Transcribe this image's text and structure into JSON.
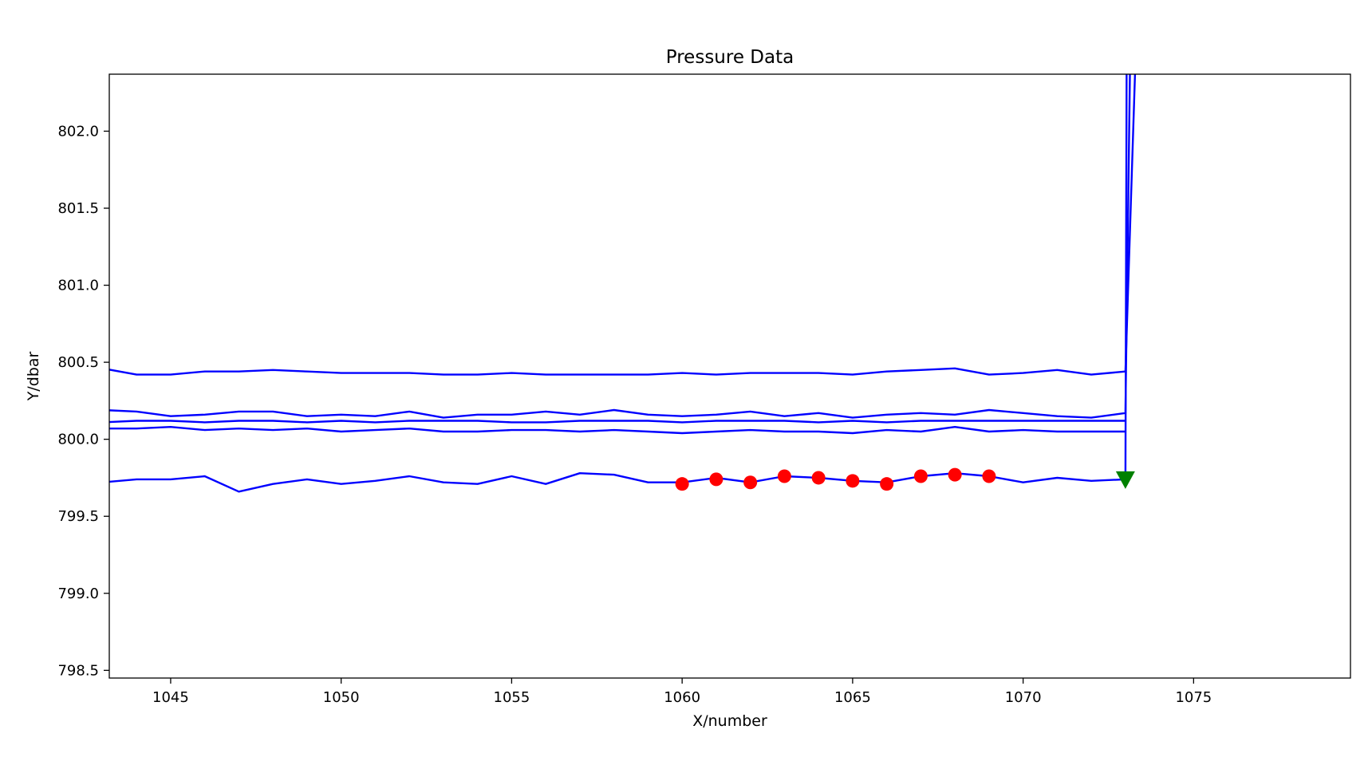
{
  "chart_data": {
    "type": "line",
    "title": "Pressure Data",
    "xlabel": "X/number",
    "ylabel": "Y/dbar",
    "xlim": [
      1043.2,
      1079.6
    ],
    "ylim": [
      798.45,
      802.37
    ],
    "xticks": [
      1045,
      1050,
      1055,
      1060,
      1065,
      1070,
      1075
    ],
    "yticks": [
      798.5,
      799.0,
      799.5,
      800.0,
      800.5,
      801.0,
      801.5,
      802.0
    ],
    "ytick_labels": [
      "798.5",
      "799.0",
      "799.5",
      "800.0",
      "800.5",
      "801.0",
      "801.5",
      "802.0"
    ],
    "grid": false,
    "line_color": "#0000ff",
    "marker_color": "#ff0000",
    "triangle_color": "#008000",
    "series": [
      {
        "x": [
          1043,
          1044,
          1045,
          1046,
          1047,
          1048,
          1049,
          1050,
          1051,
          1052,
          1053,
          1054,
          1055,
          1056,
          1057,
          1058,
          1059,
          1060,
          1061,
          1062,
          1063,
          1064,
          1065,
          1066,
          1067,
          1068,
          1069,
          1070,
          1071,
          1072,
          1073,
          1073.3,
          1073.5
        ],
        "y": [
          800.46,
          800.42,
          800.42,
          800.44,
          800.44,
          800.45,
          800.44,
          800.43,
          800.43,
          800.43,
          800.42,
          800.42,
          800.43,
          800.42,
          800.42,
          800.42,
          800.42,
          800.43,
          800.42,
          800.43,
          800.43,
          800.43,
          800.42,
          800.44,
          800.45,
          800.46,
          800.42,
          800.43,
          800.45,
          800.42,
          800.44,
          802.5,
          803.5
        ]
      },
      {
        "x": [
          1043,
          1044,
          1045,
          1046,
          1047,
          1048,
          1049,
          1050,
          1051,
          1052,
          1053,
          1054,
          1055,
          1056,
          1057,
          1058,
          1059,
          1060,
          1061,
          1062,
          1063,
          1064,
          1065,
          1066,
          1067,
          1068,
          1069,
          1070,
          1071,
          1072,
          1073,
          1073.2
        ],
        "y": [
          800.19,
          800.18,
          800.15,
          800.16,
          800.18,
          800.18,
          800.15,
          800.16,
          800.15,
          800.18,
          800.14,
          800.16,
          800.16,
          800.18,
          800.16,
          800.19,
          800.16,
          800.15,
          800.16,
          800.18,
          800.15,
          800.17,
          800.14,
          800.16,
          800.17,
          800.16,
          800.19,
          800.17,
          800.15,
          800.14,
          800.17,
          803.5
        ]
      },
      {
        "x": [
          1043,
          1044,
          1045,
          1046,
          1047,
          1048,
          1049,
          1050,
          1051,
          1052,
          1053,
          1054,
          1055,
          1056,
          1057,
          1058,
          1059,
          1060,
          1061,
          1062,
          1063,
          1064,
          1065,
          1066,
          1067,
          1068,
          1069,
          1070,
          1071,
          1072,
          1073
        ],
        "y": [
          800.11,
          800.12,
          800.12,
          800.11,
          800.12,
          800.12,
          800.11,
          800.12,
          800.11,
          800.12,
          800.12,
          800.12,
          800.11,
          800.11,
          800.12,
          800.12,
          800.12,
          800.11,
          800.12,
          800.12,
          800.12,
          800.11,
          800.12,
          800.11,
          800.12,
          800.12,
          800.12,
          800.12,
          800.12,
          800.12,
          800.12
        ]
      },
      {
        "x": [
          1043,
          1044,
          1045,
          1046,
          1047,
          1048,
          1049,
          1050,
          1051,
          1052,
          1053,
          1054,
          1055,
          1056,
          1057,
          1058,
          1059,
          1060,
          1061,
          1062,
          1063,
          1064,
          1065,
          1066,
          1067,
          1068,
          1069,
          1070,
          1071,
          1072,
          1073
        ],
        "y": [
          800.07,
          800.07,
          800.08,
          800.06,
          800.07,
          800.06,
          800.07,
          800.05,
          800.06,
          800.07,
          800.05,
          800.05,
          800.06,
          800.06,
          800.05,
          800.06,
          800.05,
          800.04,
          800.05,
          800.06,
          800.05,
          800.05,
          800.04,
          800.06,
          800.05,
          800.08,
          800.05,
          800.06,
          800.05,
          800.05,
          800.05
        ]
      },
      {
        "x": [
          1043,
          1044,
          1045,
          1046,
          1047,
          1048,
          1049,
          1050,
          1051,
          1052,
          1053,
          1054,
          1055,
          1056,
          1057,
          1058,
          1059,
          1060,
          1061,
          1062,
          1063,
          1064,
          1065,
          1066,
          1067,
          1068,
          1069,
          1070,
          1071,
          1072,
          1073,
          1073.05
        ],
        "y": [
          799.72,
          799.74,
          799.74,
          799.76,
          799.66,
          799.71,
          799.74,
          799.71,
          799.73,
          799.76,
          799.72,
          799.71,
          799.76,
          799.71,
          799.78,
          799.77,
          799.72,
          799.72,
          799.75,
          799.72,
          799.76,
          799.75,
          799.73,
          799.72,
          799.76,
          799.78,
          799.76,
          799.72,
          799.75,
          799.73,
          799.74,
          803.5
        ]
      }
    ],
    "markers": {
      "x": [
        1060,
        1061,
        1062,
        1063,
        1064,
        1065,
        1066,
        1067,
        1068,
        1069
      ],
      "y": [
        799.71,
        799.74,
        799.72,
        799.76,
        799.75,
        799.73,
        799.71,
        799.76,
        799.77,
        799.76
      ]
    },
    "triangle": {
      "x": 1073,
      "y": 799.73
    }
  }
}
